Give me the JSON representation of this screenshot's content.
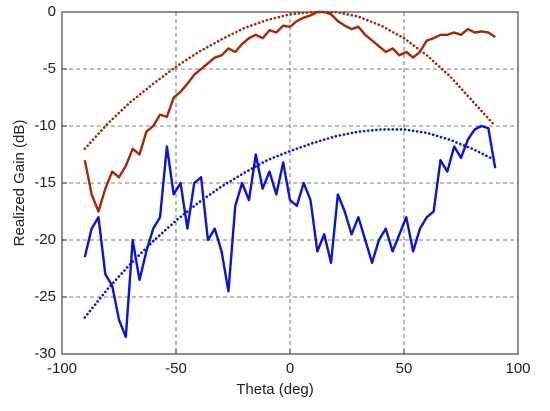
{
  "chart_data": {
    "type": "line",
    "xlabel": "Theta (deg)",
    "ylabel": "Realized Gain (dB)",
    "xlim": [
      -100,
      100
    ],
    "xticks": [
      -100,
      -50,
      0,
      50,
      100
    ],
    "ylim": [
      -30,
      0
    ],
    "yticks": [
      -30,
      -25,
      -20,
      -15,
      -10,
      -5,
      0
    ],
    "grid": true,
    "series": [
      {
        "color": "#a02a0a",
        "style": "solid",
        "x": [
          -90,
          -87,
          -84,
          -81,
          -78,
          -75,
          -72,
          -69,
          -66,
          -63,
          -60,
          -57,
          -54,
          -51,
          -48,
          -45,
          -42,
          -39,
          -36,
          -33,
          -30,
          -27,
          -24,
          -21,
          -18,
          -15,
          -12,
          -9,
          -6,
          -3,
          0,
          3,
          6,
          9,
          12,
          15,
          18,
          21,
          24,
          27,
          30,
          33,
          36,
          39,
          42,
          45,
          48,
          51,
          54,
          57,
          60,
          63,
          66,
          69,
          72,
          75,
          78,
          81,
          84,
          87,
          90
        ],
        "values": [
          -13,
          -16,
          -17.5,
          -15.5,
          -14,
          -14.5,
          -13.5,
          -12,
          -12.5,
          -10.5,
          -10,
          -9,
          -9.2,
          -7.5,
          -7,
          -6.3,
          -5.5,
          -5,
          -4.5,
          -4,
          -3.8,
          -3.2,
          -3.5,
          -2.8,
          -2.3,
          -2,
          -2.3,
          -1.6,
          -1.8,
          -1.2,
          -1.3,
          -0.8,
          -0.5,
          -0.3,
          0,
          0,
          -0.2,
          -0.8,
          -1.2,
          -1.5,
          -1.3,
          -2,
          -2.5,
          -3,
          -3.5,
          -3.2,
          -3.8,
          -3.5,
          -4,
          -3.5,
          -2.5,
          -2.3,
          -2,
          -2,
          -1.8,
          -2,
          -1.5,
          -1.8,
          -1.7,
          -1.8,
          -2.2
        ]
      },
      {
        "color": "#a02a0a",
        "style": "dotted",
        "x": [
          -90,
          -80,
          -70,
          -60,
          -50,
          -40,
          -30,
          -20,
          -10,
          0,
          10,
          20,
          30,
          40,
          50,
          60,
          70,
          80,
          90
        ],
        "values": [
          -12,
          -9.8,
          -7.9,
          -6.3,
          -4.8,
          -3.5,
          -2.4,
          -1.4,
          -0.7,
          -0.2,
          0,
          0,
          -0.4,
          -1.2,
          -2.3,
          -3.8,
          -5.6,
          -7.8,
          -10
        ]
      },
      {
        "color": "#0a14d8",
        "style": "solid",
        "x": [
          -90,
          -87,
          -84,
          -81,
          -78,
          -75,
          -72,
          -69,
          -66,
          -63,
          -60,
          -57,
          -54,
          -51,
          -48,
          -45,
          -42,
          -39,
          -36,
          -33,
          -30,
          -27,
          -24,
          -21,
          -18,
          -15,
          -12,
          -9,
          -6,
          -3,
          0,
          3,
          6,
          9,
          12,
          15,
          18,
          21,
          24,
          27,
          30,
          33,
          36,
          39,
          42,
          45,
          48,
          51,
          54,
          57,
          60,
          63,
          66,
          69,
          72,
          75,
          78,
          81,
          84,
          87,
          90
        ],
        "values": [
          -21.5,
          -19,
          -18,
          -23,
          -24,
          -27,
          -28.5,
          -20,
          -23.5,
          -21,
          -19,
          -18,
          -11.8,
          -16,
          -15,
          -19,
          -15,
          -14.5,
          -20,
          -19,
          -21,
          -24.5,
          -17,
          -15,
          -16.5,
          -12.5,
          -15.5,
          -14,
          -16,
          -13.2,
          -16.5,
          -17,
          -15,
          -16.5,
          -21,
          -19.5,
          -22,
          -16,
          -17.5,
          -19.5,
          -18,
          -20,
          -22,
          -20,
          -19,
          -21,
          -19.5,
          -18,
          -21,
          -19,
          -18,
          -17.5,
          -13,
          -14,
          -11.8,
          -12.8,
          -11.2,
          -10.3,
          -10,
          -10.2,
          -13.7
        ]
      },
      {
        "color": "#0a14d8",
        "style": "dotted",
        "x": [
          -90,
          -80,
          -70,
          -60,
          -50,
          -40,
          -30,
          -20,
          -10,
          0,
          10,
          20,
          30,
          40,
          50,
          60,
          70,
          80,
          90
        ],
        "values": [
          -26.8,
          -24.3,
          -22.1,
          -20.1,
          -18.3,
          -16.7,
          -15.3,
          -14.1,
          -13,
          -12.2,
          -11.5,
          -10.9,
          -10.5,
          -10.3,
          -10.3,
          -10.6,
          -11.2,
          -12,
          -13
        ]
      }
    ]
  }
}
